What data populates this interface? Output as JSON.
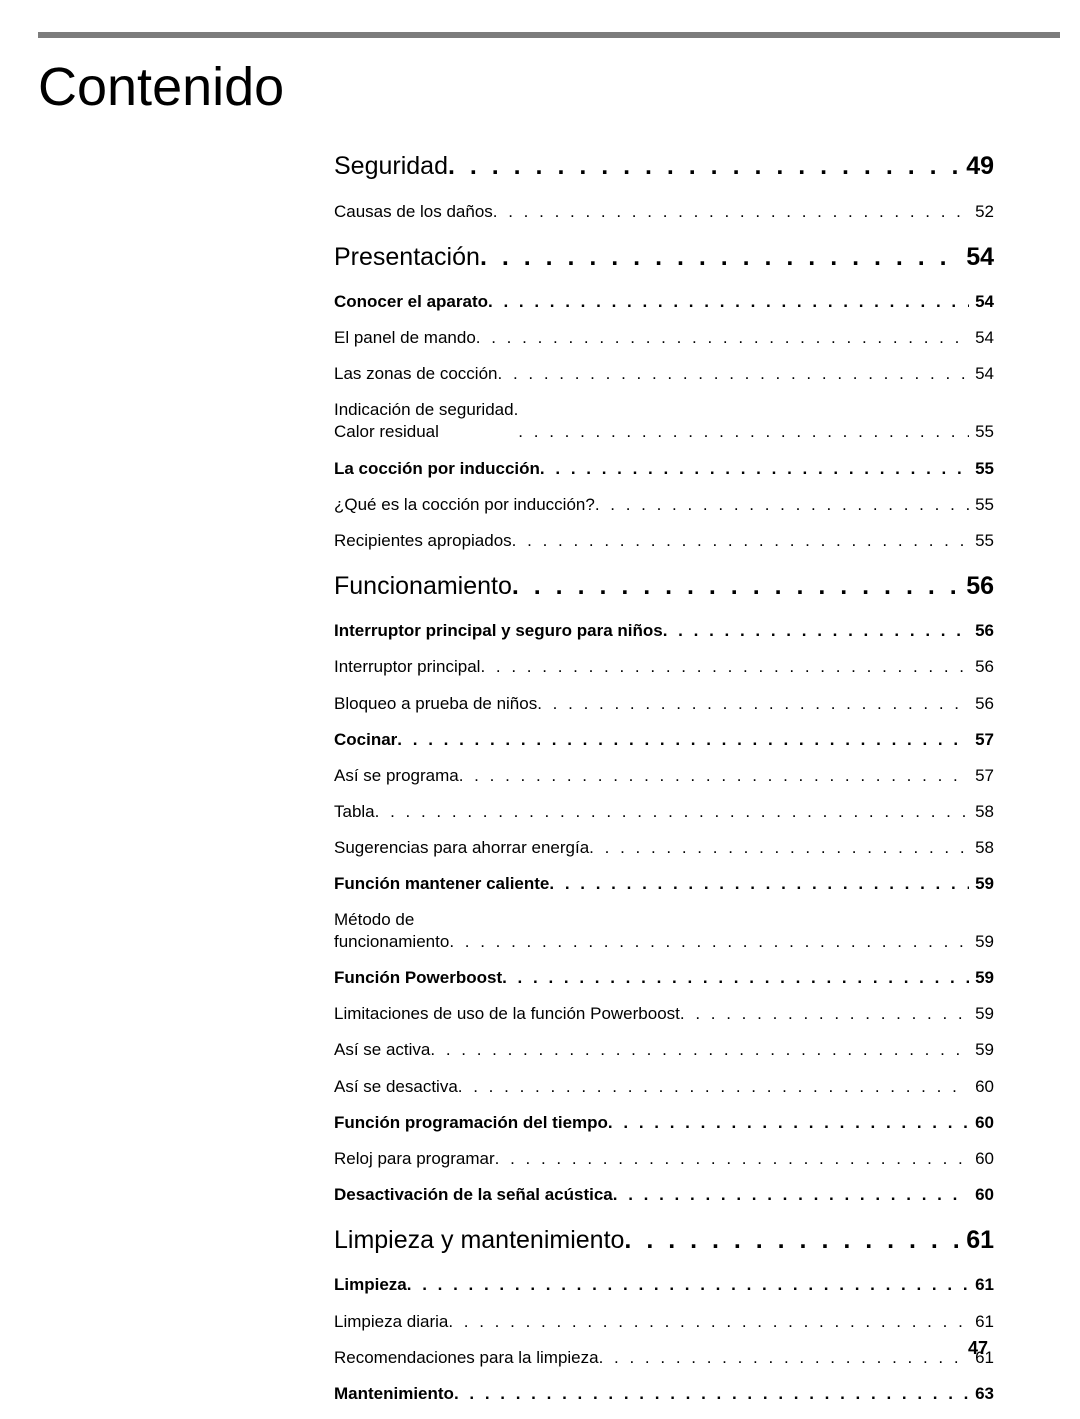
{
  "title": "Contenido",
  "page_number": "47",
  "colors": {
    "topbar": "#7c7c7c",
    "text": "#000000",
    "bg": "#ffffff"
  },
  "toc": [
    {
      "level": "section",
      "label": "Seguridad",
      "page": "49"
    },
    {
      "level": "item",
      "label": "Causas de los daños",
      "page": "52"
    },
    {
      "level": "section",
      "label": "Presentación",
      "page": "54"
    },
    {
      "level": "subhead",
      "label": "Conocer el aparato",
      "page": "54"
    },
    {
      "level": "item",
      "label": "El panel de mando",
      "page": "54"
    },
    {
      "level": "item",
      "label": "Las zonas de cocción",
      "page": "54"
    },
    {
      "level": "item",
      "label": "Indicación de seguridad.\nCalor residual",
      "page": "55",
      "multiline": true
    },
    {
      "level": "subhead",
      "label": "La cocción por inducción",
      "page": "55"
    },
    {
      "level": "item",
      "label": "¿Qué es la cocción por inducción?",
      "page": "55"
    },
    {
      "level": "item",
      "label": "Recipientes apropiados",
      "page": "55"
    },
    {
      "level": "section",
      "label": "Funcionamiento",
      "page": "56"
    },
    {
      "level": "subhead",
      "label": "Interruptor principal y seguro para niños",
      "page": "56"
    },
    {
      "level": "item",
      "label": "Interruptor principal",
      "page": "56"
    },
    {
      "level": "item",
      "label": "Bloqueo a prueba de niños",
      "page": "56"
    },
    {
      "level": "subhead",
      "label": "Cocinar",
      "page": "57"
    },
    {
      "level": "item",
      "label": "Así se programa",
      "page": "57"
    },
    {
      "level": "item",
      "label": "Tabla",
      "page": "58"
    },
    {
      "level": "item",
      "label": "Sugerencias para ahorrar energía",
      "page": "58"
    },
    {
      "level": "subhead",
      "label": "Función mantener caliente",
      "page": "59"
    },
    {
      "level": "item",
      "label": "Método de\nfuncionamiento",
      "page": "59",
      "multiline": true
    },
    {
      "level": "subhead",
      "label": "Función Powerboost",
      "page": "59"
    },
    {
      "level": "item",
      "label": "Limitaciones de uso de la función Powerboost",
      "page": "59"
    },
    {
      "level": "item",
      "label": "Así se activa",
      "page": "59"
    },
    {
      "level": "item",
      "label": "Así se desactiva",
      "page": "60"
    },
    {
      "level": "subhead",
      "label": "Función programación del tiempo",
      "page": "60"
    },
    {
      "level": "item",
      "label": "Reloj para programar",
      "page": "60"
    },
    {
      "level": "subhead",
      "label": "Desactivación de la señal acústica",
      "page": "60"
    },
    {
      "level": "section",
      "label": "Limpieza y mantenimiento",
      "page": "61"
    },
    {
      "level": "subhead",
      "label": "Limpieza",
      "page": "61"
    },
    {
      "level": "item",
      "label": "Limpieza diaria",
      "page": "61"
    },
    {
      "level": "item",
      "label": "Recomendaciones para la limpieza",
      "page": "61"
    },
    {
      "level": "subhead",
      "label": "Mantenimiento",
      "page": "63"
    }
  ]
}
